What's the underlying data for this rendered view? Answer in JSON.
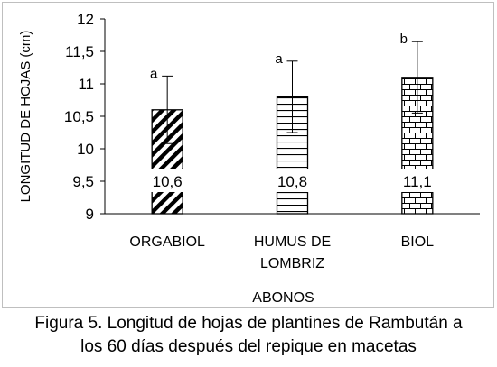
{
  "chart_data": {
    "type": "bar",
    "categories": [
      "ORGABIOL",
      "HUMUS DE LOMBRIZ",
      "BIOL"
    ],
    "category_lines": [
      [
        "ORGABIOL"
      ],
      [
        "HUMUS DE",
        "LOMBRIZ"
      ],
      [
        "BIOL"
      ]
    ],
    "values": [
      10.6,
      10.8,
      11.1
    ],
    "data_labels": [
      "10,6",
      "10,8",
      "11,1"
    ],
    "error_upper": [
      11.12,
      11.35,
      11.65
    ],
    "error_lower": [
      10.08,
      10.25,
      10.55
    ],
    "significance_letters": [
      "a",
      "a",
      "b"
    ],
    "patterns": [
      "diagonal-stripes",
      "horizontal-lines",
      "brick"
    ],
    "xlabel": "ABONOS",
    "ylabel": "LONGITUD DE HOJAS (cm)",
    "ylim": [
      9,
      12
    ],
    "yticks": [
      9,
      9.5,
      10,
      10.5,
      11,
      11.5,
      12
    ],
    "ytick_labels": [
      "9",
      "9,5",
      "10",
      "10,5",
      "11",
      "11,5",
      "12"
    ],
    "grid": false,
    "legend": "none"
  },
  "caption": {
    "line1": "Figura 5. Longitud de hojas de plantines de Rambután a",
    "line2": "los 60 días después del repique en macetas"
  },
  "colors": {
    "bar_fill": "#ffffff",
    "pattern": "#000000",
    "border": "#bfbfbf"
  }
}
